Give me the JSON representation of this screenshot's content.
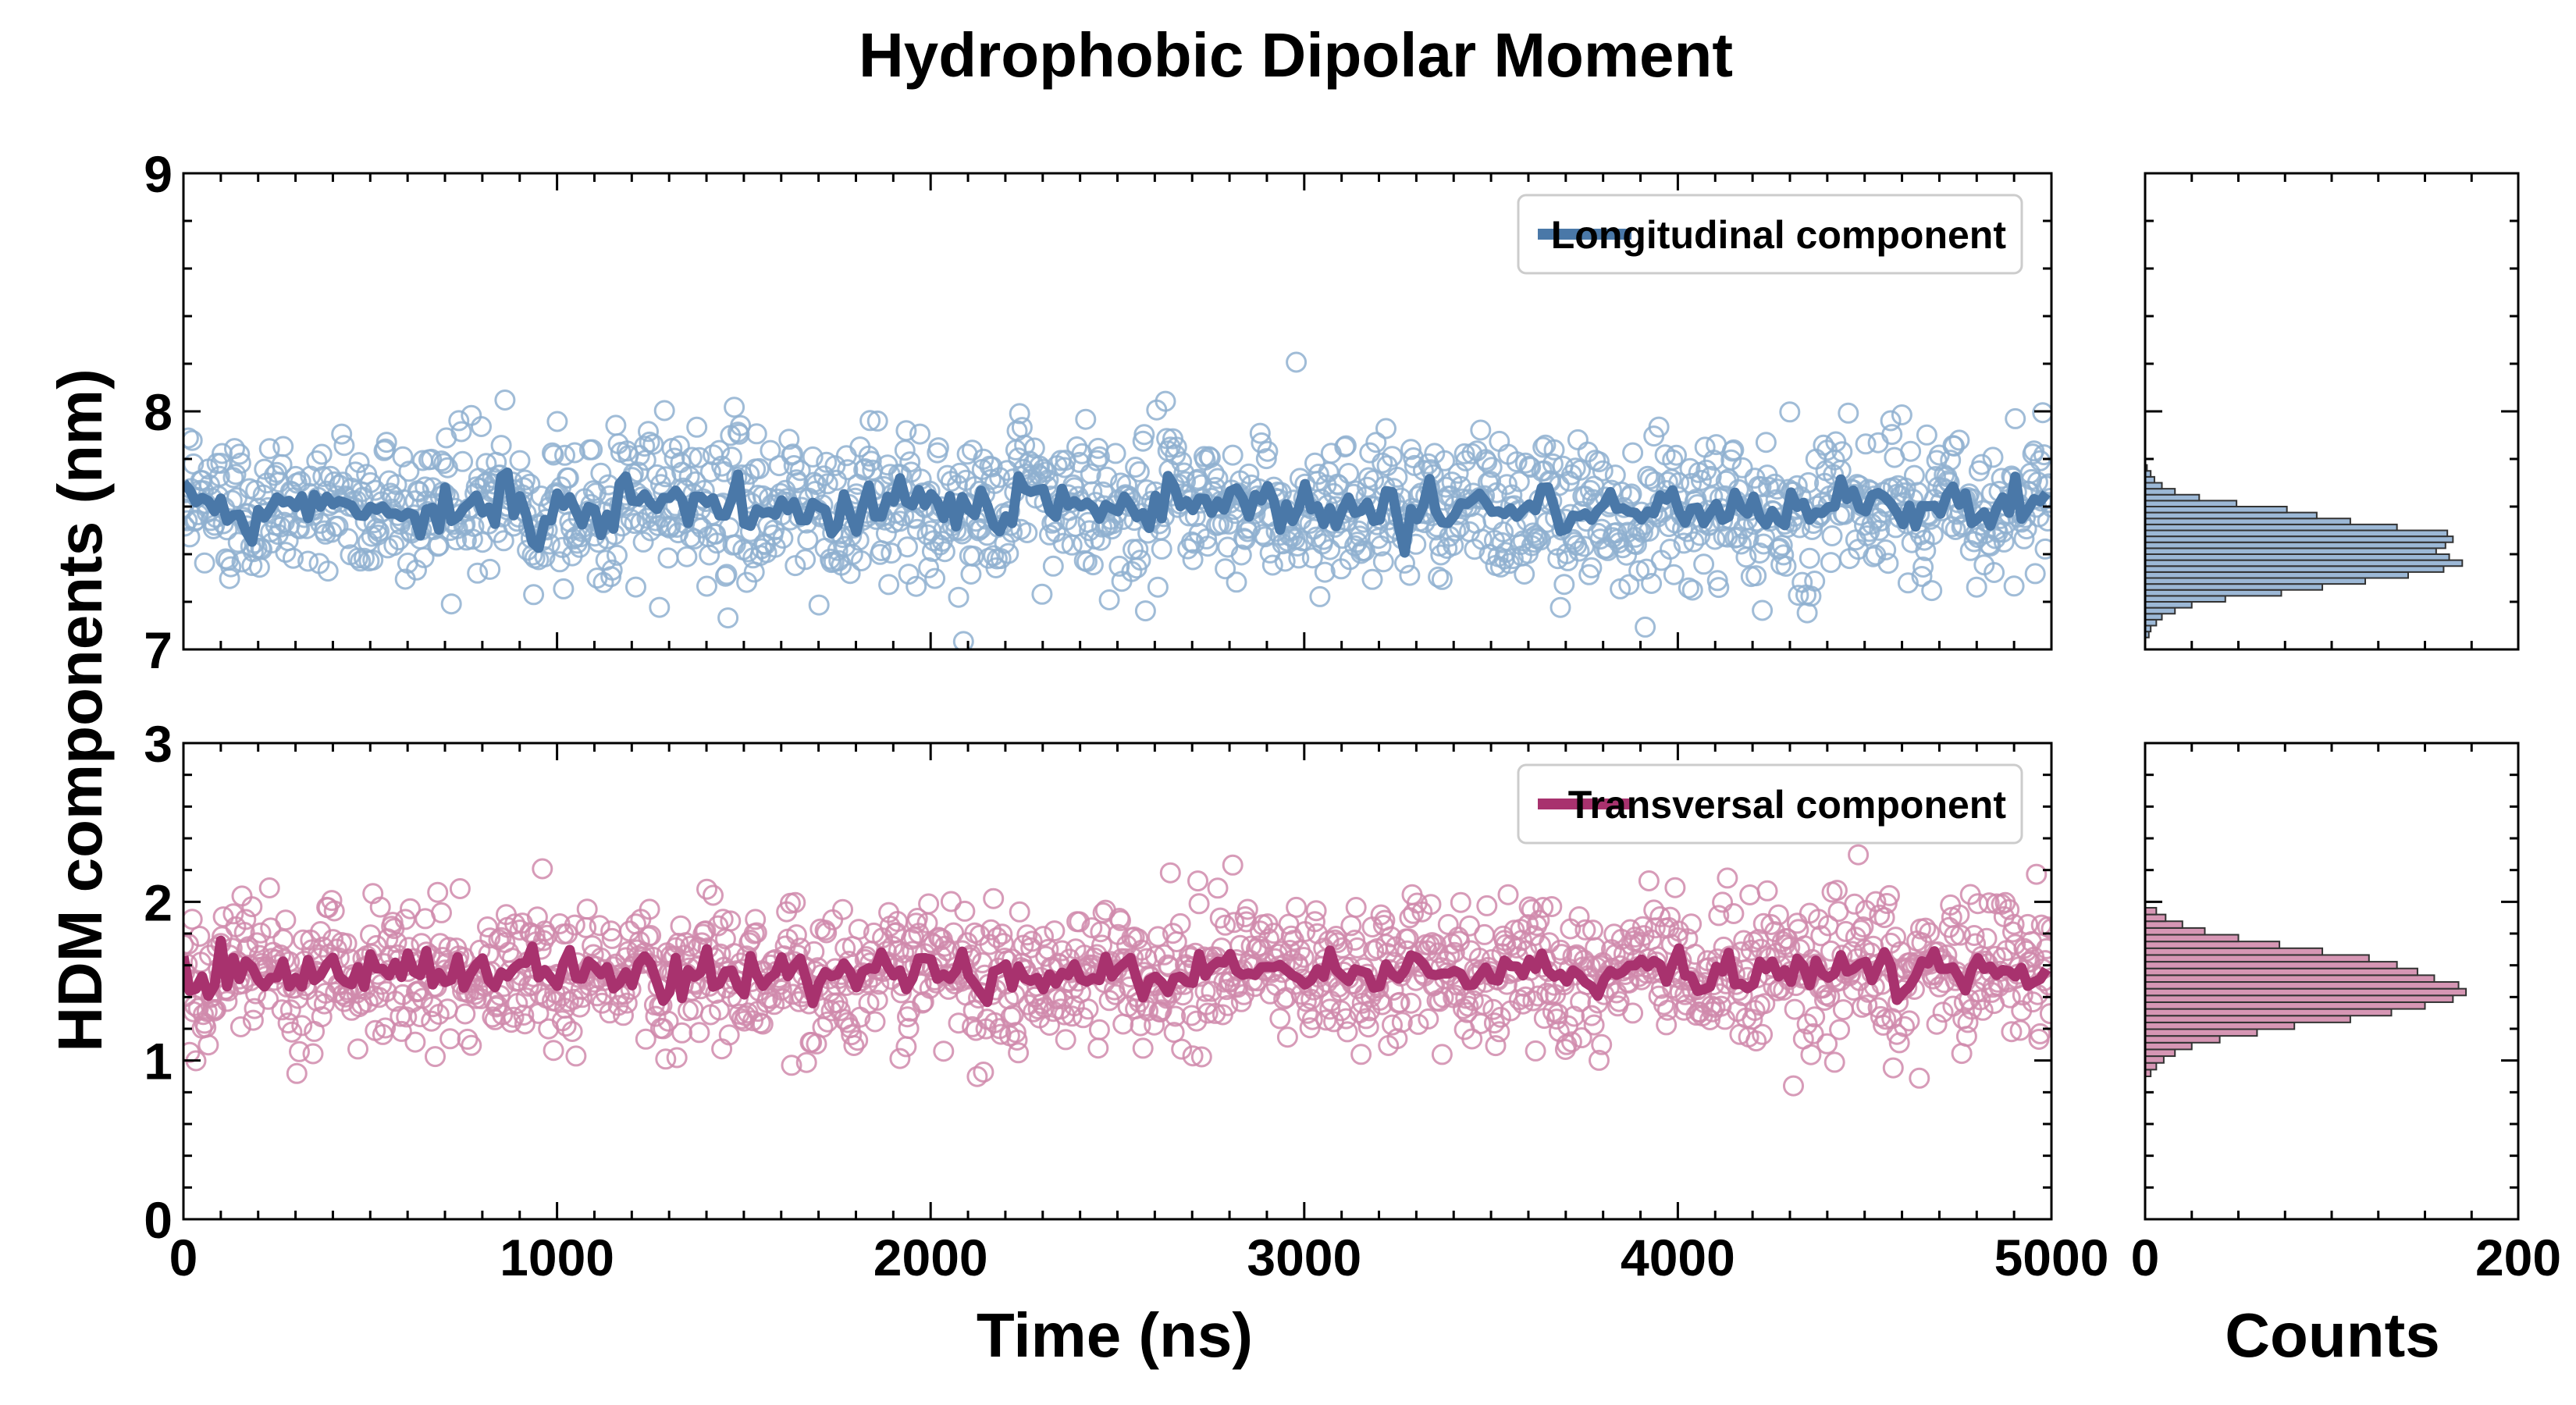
{
  "chart_data": {
    "title": "Hydrophobic Dipolar Moment",
    "ylabel": "HDM components (nm)",
    "xlabel_main": "Time (ns)",
    "xlabel_hist": "Counts",
    "colors": {
      "longitudinal": "#4a78a8",
      "longitudinal_marker": "#8fb0d0",
      "longitudinal_hist": "#9cb8d6",
      "transversal": "#a8326e",
      "transversal_marker": "#d08aab",
      "transversal_hist": "#d696b4",
      "hist_edge": "#333333"
    },
    "panels": [
      {
        "id": "longitudinal",
        "type": "scatter+line",
        "legend": "Longitudinal component",
        "legend_position": "top-right",
        "xlim": [
          0,
          5000
        ],
        "ylim": [
          7,
          9
        ],
        "xticks": [
          0,
          1000,
          2000,
          3000,
          4000,
          5000
        ],
        "yticks": [
          7,
          8,
          9
        ],
        "mean": 7.6,
        "scatter_sd": 0.15,
        "running_mean_sd": 0.055,
        "hist": {
          "xlim": [
            0,
            200
          ],
          "xticks": [
            0,
            200
          ],
          "bin_start": 7.0,
          "bin_width": 0.025,
          "counts": [
            0,
            0,
            2,
            3,
            6,
            9,
            16,
            25,
            43,
            73,
            95,
            118,
            141,
            160,
            170,
            163,
            156,
            161,
            165,
            162,
            135,
            110,
            92,
            76,
            49,
            29,
            16,
            9,
            5,
            3,
            1
          ]
        }
      },
      {
        "id": "transversal",
        "type": "scatter+line",
        "legend": "Transversal component",
        "legend_position": "top-right",
        "xlim": [
          0,
          5000
        ],
        "ylim": [
          0,
          3
        ],
        "xticks": [
          0,
          1000,
          2000,
          3000,
          4000,
          5000
        ],
        "yticks": [
          0,
          1,
          2,
          3
        ],
        "mean": 1.55,
        "scatter_sd": 0.21,
        "running_mean_sd": 0.07,
        "hist": {
          "xlim": [
            0,
            200
          ],
          "xticks": [
            0,
            200
          ],
          "bin_start": 0.9,
          "bin_width": 0.0425,
          "counts": [
            3,
            6,
            10,
            16,
            25,
            40,
            60,
            80,
            110,
            132,
            150,
            165,
            172,
            168,
            155,
            146,
            135,
            120,
            95,
            72,
            50,
            32,
            20,
            11,
            6
          ]
        }
      }
    ]
  }
}
